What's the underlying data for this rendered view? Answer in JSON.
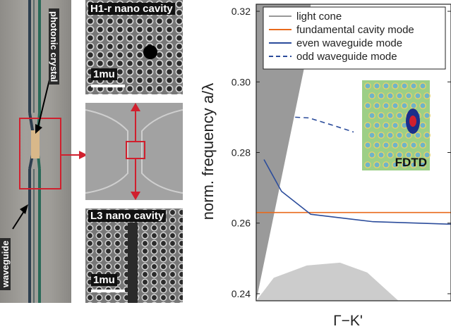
{
  "figure": {
    "photo_labels": {
      "photonic_crystal": "photonic crystal",
      "waveguide": "waveguide"
    },
    "micrographs": [
      {
        "title": "H1-r nano cavity",
        "scale_bar": "1mu"
      },
      {
        "title": "L3 nano cavity",
        "scale_bar": "1mu"
      }
    ],
    "inset_label": "FDTD"
  },
  "chart_data": {
    "type": "line",
    "xlabel": "Γ−K'",
    "ylabel": "norm. frequency a/λ",
    "ylim": [
      0.238,
      0.322
    ],
    "xlim": [
      0,
      1
    ],
    "yticks": [
      0.24,
      0.26,
      0.28,
      0.3,
      0.32
    ],
    "ytick_labels": [
      "0.24",
      "0.26",
      "0.28",
      "0.30",
      "0.32"
    ],
    "legend": {
      "placement": "top-right",
      "entries": [
        {
          "name": "light cone",
          "color": "#999999",
          "style": "solid"
        },
        {
          "name": "fundamental cavity mode",
          "color": "#e86a1c",
          "style": "solid"
        },
        {
          "name": "even waveguide mode",
          "color": "#2b4c9b",
          "style": "solid"
        },
        {
          "name": "odd waveguide mode",
          "color": "#2b4c9b",
          "style": "dashed"
        }
      ]
    },
    "series": [
      {
        "name": "fundamental cavity mode",
        "color": "#e86a1c",
        "style": "solid",
        "x": [
          0.0,
          1.0
        ],
        "y": [
          0.263,
          0.263
        ]
      },
      {
        "name": "even waveguide mode",
        "color": "#2b4c9b",
        "style": "solid",
        "x": [
          0.04,
          0.13,
          0.28,
          0.6,
          1.0
        ],
        "y": [
          0.278,
          0.269,
          0.2625,
          0.2604,
          0.2597
        ]
      },
      {
        "name": "odd waveguide mode",
        "color": "#2b4c9b",
        "style": "dashed",
        "x": [
          0.2,
          0.27,
          0.4,
          0.5
        ],
        "y": [
          0.29,
          0.2898,
          0.2876,
          0.2858
        ]
      }
    ],
    "light_cone": {
      "color": "#9a9a9a",
      "x": [
        0.0,
        0.0,
        0.28,
        0.25
      ],
      "y": [
        0.238,
        0.322,
        0.322,
        0.305
      ]
    },
    "bulk_band": {
      "color": "#cccccc",
      "x": [
        0.0,
        0.09,
        0.26,
        0.43,
        0.57,
        0.73
      ],
      "y": [
        0.238,
        0.2445,
        0.248,
        0.2488,
        0.246,
        0.238
      ]
    }
  }
}
